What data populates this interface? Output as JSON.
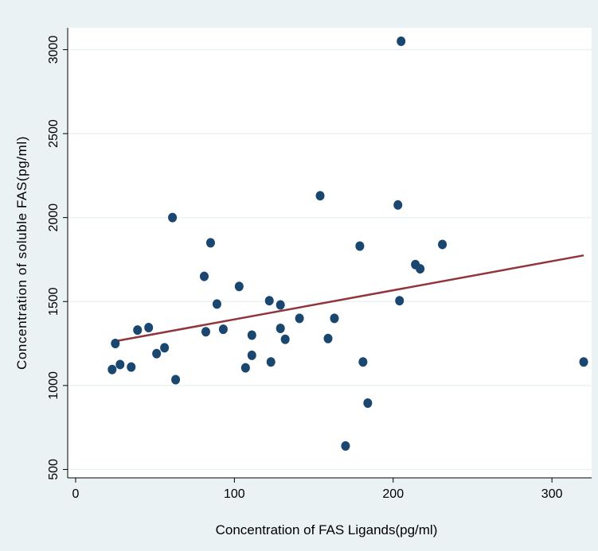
{
  "chart_data": {
    "type": "scatter",
    "title": "",
    "xlabel": "Concentration of FAS Ligands(pg/ml)",
    "ylabel": "Concentration of soluble FAS(pg/ml)",
    "xlim": [
      -5,
      325
    ],
    "ylim": [
      450,
      3130
    ],
    "xticks": [
      0,
      100,
      200,
      300
    ],
    "yticks": [
      500,
      1000,
      1500,
      2000,
      2500,
      3000
    ],
    "grid": true,
    "legend": "none",
    "colors": {
      "background": "#eaf2f3",
      "plot_area": "#ffffff",
      "points": "#1a476f",
      "fit_line": "#90353b",
      "grid": "#eaf2f3"
    },
    "series": [
      {
        "kind": "points",
        "x": [
          23,
          25,
          28,
          35,
          39,
          46,
          51,
          56,
          61,
          63,
          81,
          82,
          85,
          89,
          93,
          103,
          107,
          111,
          111,
          122,
          123,
          129,
          129,
          132,
          141,
          154,
          159,
          163,
          170,
          179,
          181,
          184,
          203,
          204,
          205,
          214,
          217,
          231,
          320
        ],
        "y": [
          1095,
          1250,
          1125,
          1110,
          1330,
          1345,
          1190,
          1225,
          2000,
          1035,
          1650,
          1320,
          1850,
          1485,
          1335,
          1590,
          1105,
          1300,
          1180,
          1505,
          1140,
          1340,
          1480,
          1275,
          1400,
          2130,
          1280,
          1400,
          640,
          1830,
          1140,
          895,
          2075,
          1505,
          3050,
          1720,
          1695,
          1840,
          1140
        ]
      },
      {
        "kind": "fit",
        "x": [
          24,
          320
        ],
        "y": [
          1262,
          1775
        ]
      }
    ]
  }
}
